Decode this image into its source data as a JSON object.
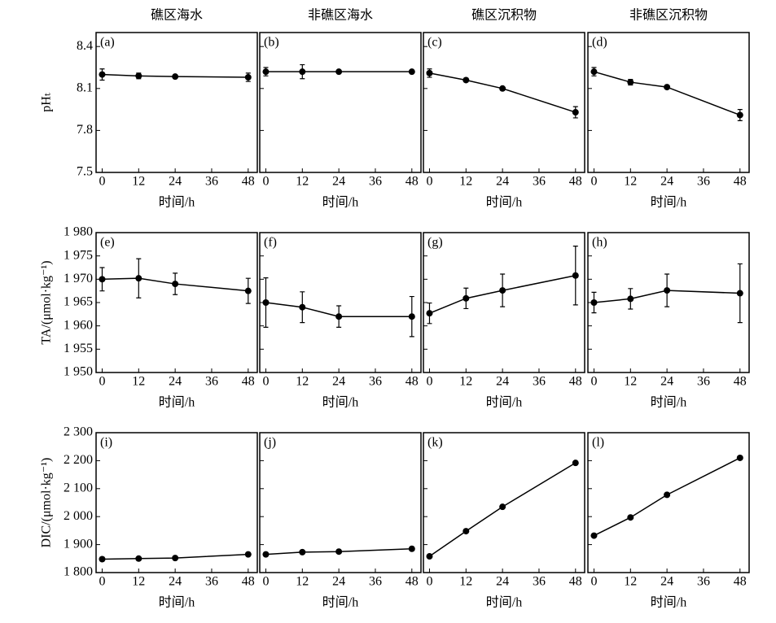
{
  "chart_data": [
    {
      "type": "line",
      "title": "礁区海水",
      "panel": "(a)",
      "ylabel": "pHₜ",
      "xlabel": "时间/h",
      "x": [
        0,
        12,
        24,
        48
      ],
      "values": [
        8.2,
        8.19,
        8.185,
        8.18
      ],
      "errors": [
        0.04,
        0.02,
        0.01,
        0.03
      ],
      "color": "#000000",
      "xlim": [
        -2,
        51
      ],
      "xticks": [
        0,
        12,
        24,
        36,
        48
      ],
      "ylim": [
        7.5,
        8.5
      ],
      "yticks": [
        7.5,
        7.8,
        8.1,
        8.4
      ]
    },
    {
      "type": "line",
      "title": "非礁区海水",
      "panel": "(b)",
      "xlabel": "时间/h",
      "x": [
        0,
        12,
        24,
        48
      ],
      "values": [
        8.22,
        8.22,
        8.22,
        8.22
      ],
      "errors": [
        0.03,
        0.05,
        0.01,
        0.01
      ],
      "color": "#000000",
      "xlim": [
        -2,
        51
      ],
      "xticks": [
        0,
        12,
        24,
        36,
        48
      ],
      "ylim": [
        7.5,
        8.5
      ],
      "yticks": [
        7.5,
        7.8,
        8.1,
        8.4
      ]
    },
    {
      "type": "line",
      "title": "礁区沉积物",
      "panel": "(c)",
      "xlabel": "时间/h",
      "x": [
        0,
        12,
        24,
        48
      ],
      "values": [
        8.21,
        8.16,
        8.1,
        7.93
      ],
      "errors": [
        0.03,
        0.01,
        0.01,
        0.04
      ],
      "color": "#000000",
      "xlim": [
        -2,
        51
      ],
      "xticks": [
        0,
        12,
        24,
        36,
        48
      ],
      "ylim": [
        7.5,
        8.5
      ],
      "yticks": [
        7.5,
        7.8,
        8.1,
        8.4
      ]
    },
    {
      "type": "line",
      "title": "非礁区沉积物",
      "panel": "(d)",
      "xlabel": "时间/h",
      "x": [
        0,
        12,
        24,
        48
      ],
      "values": [
        8.22,
        8.145,
        8.11,
        7.91
      ],
      "errors": [
        0.03,
        0.02,
        0.01,
        0.04
      ],
      "color": "#000000",
      "xlim": [
        -2,
        51
      ],
      "xticks": [
        0,
        12,
        24,
        36,
        48
      ],
      "ylim": [
        7.5,
        8.5
      ],
      "yticks": [
        7.5,
        7.8,
        8.1,
        8.4
      ]
    },
    {
      "type": "line",
      "panel": "(e)",
      "ylabel": "TA/(μmol·kg⁻¹)",
      "xlabel": "时间/h",
      "x": [
        0,
        12,
        24,
        48
      ],
      "values": [
        1970,
        1970.2,
        1969,
        1967.5
      ],
      "errors": [
        2.5,
        4.2,
        2.3,
        2.7
      ],
      "color": "#000000",
      "xlim": [
        -2,
        51
      ],
      "xticks": [
        0,
        12,
        24,
        36,
        48
      ],
      "ylim": [
        1950,
        1980
      ],
      "yticks": [
        {
          "value": 1950,
          "label": "1 950"
        },
        {
          "value": 1955,
          "label": "1 955"
        },
        {
          "value": 1960,
          "label": "1 960"
        },
        {
          "value": 1965,
          "label": "1 965"
        },
        {
          "value": 1970,
          "label": "1 970"
        },
        {
          "value": 1975,
          "label": "1 975"
        },
        {
          "value": 1980,
          "label": "1 980"
        }
      ]
    },
    {
      "type": "line",
      "panel": "(f)",
      "xlabel": "时间/h",
      "x": [
        0,
        12,
        24,
        48
      ],
      "values": [
        1965,
        1964,
        1962,
        1962
      ],
      "errors": [
        5.3,
        3.3,
        2.3,
        4.3
      ],
      "color": "#000000",
      "xlim": [
        -2,
        51
      ],
      "xticks": [
        0,
        12,
        24,
        36,
        48
      ],
      "ylim": [
        1950,
        1980
      ],
      "yticks": [
        1950,
        1955,
        1960,
        1965,
        1970,
        1975,
        1980
      ]
    },
    {
      "type": "line",
      "panel": "(g)",
      "xlabel": "时间/h",
      "x": [
        0,
        12,
        24,
        48
      ],
      "values": [
        1962.7,
        1965.9,
        1967.6,
        1970.8
      ],
      "errors": [
        2.2,
        2.2,
        3.5,
        6.3
      ],
      "color": "#000000",
      "xlim": [
        -2,
        51
      ],
      "xticks": [
        0,
        12,
        24,
        36,
        48
      ],
      "ylim": [
        1950,
        1980
      ],
      "yticks": [
        1950,
        1955,
        1960,
        1965,
        1970,
        1975,
        1980
      ]
    },
    {
      "type": "line",
      "panel": "(h)",
      "xlabel": "时间/h",
      "x": [
        0,
        12,
        24,
        48
      ],
      "values": [
        1965,
        1965.8,
        1967.6,
        1967
      ],
      "errors": [
        2.2,
        2.2,
        3.5,
        6.3
      ],
      "color": "#000000",
      "xlim": [
        -2,
        51
      ],
      "xticks": [
        0,
        12,
        24,
        36,
        48
      ],
      "ylim": [
        1950,
        1980
      ],
      "yticks": [
        1950,
        1955,
        1960,
        1965,
        1970,
        1975,
        1980
      ]
    },
    {
      "type": "line",
      "panel": "(i)",
      "ylabel": "DIC/(μmol·kg⁻¹)",
      "xlabel": "时间/h",
      "x": [
        0,
        12,
        24,
        48
      ],
      "values": [
        1848,
        1850,
        1852,
        1865
      ],
      "color": "#000000",
      "xlim": [
        -2,
        51
      ],
      "xticks": [
        0,
        12,
        24,
        36,
        48
      ],
      "ylim": [
        1800,
        2300
      ],
      "yticks": [
        {
          "value": 1800,
          "label": "1 800"
        },
        {
          "value": 1900,
          "label": "1 900"
        },
        {
          "value": 2000,
          "label": "2 000"
        },
        {
          "value": 2100,
          "label": "2 100"
        },
        {
          "value": 2200,
          "label": "2 200"
        },
        {
          "value": 2300,
          "label": "2 300"
        }
      ]
    },
    {
      "type": "line",
      "panel": "(j)",
      "xlabel": "时间/h",
      "x": [
        0,
        12,
        24,
        48
      ],
      "values": [
        1865,
        1873,
        1875,
        1885
      ],
      "color": "#000000",
      "xlim": [
        -2,
        51
      ],
      "xticks": [
        0,
        12,
        24,
        36,
        48
      ],
      "ylim": [
        1800,
        2300
      ],
      "yticks": [
        1800,
        1900,
        2000,
        2100,
        2200,
        2300
      ]
    },
    {
      "type": "line",
      "panel": "(k)",
      "xlabel": "时间/h",
      "x": [
        0,
        12,
        24,
        48
      ],
      "values": [
        1858,
        1948,
        2035,
        2192
      ],
      "color": "#000000",
      "xlim": [
        -2,
        51
      ],
      "xticks": [
        0,
        12,
        24,
        36,
        48
      ],
      "ylim": [
        1800,
        2300
      ],
      "yticks": [
        1800,
        1900,
        2000,
        2100,
        2200,
        2300
      ]
    },
    {
      "type": "line",
      "panel": "(l)",
      "xlabel": "时间/h",
      "x": [
        0,
        12,
        24,
        48
      ],
      "values": [
        1932,
        1997,
        2078,
        2210
      ],
      "color": "#000000",
      "xlim": [
        -2,
        51
      ],
      "xticks": [
        0,
        12,
        24,
        36,
        48
      ],
      "ylim": [
        1800,
        2300
      ],
      "yticks": [
        1800,
        1900,
        2000,
        2100,
        2200,
        2300
      ]
    }
  ]
}
